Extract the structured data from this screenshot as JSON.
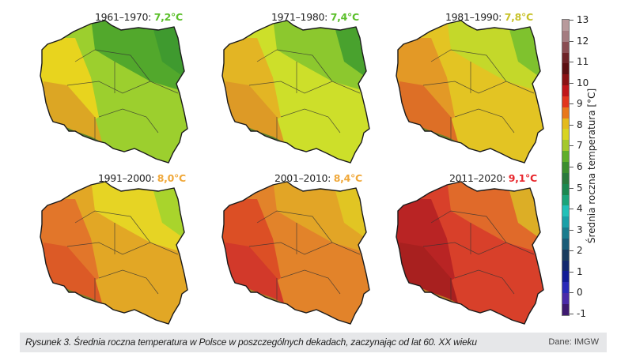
{
  "figure": {
    "caption": "Rysunek 3. Średnia roczna temperatura w Polsce w poszczególnych dekadach, zaczynając od lat 60. XX wieku",
    "source": "Dane: IMGW"
  },
  "panels": [
    {
      "period": "1961–1970: ",
      "mean": "7,2°C",
      "mean_color": "#5bbf2a",
      "fill_main": "#9ccf2e",
      "fill_north": "#52a82c",
      "fill_ne": "#3f9a2f",
      "fill_west": "#e8d41e",
      "fill_sw": "#dca624"
    },
    {
      "period": "1971–1980: ",
      "mean": "7,4°C",
      "mean_color": "#5bbf2a",
      "fill_main": "#cddf2a",
      "fill_north": "#8cc82e",
      "fill_ne": "#49a22e",
      "fill_west": "#e3b524",
      "fill_sw": "#dd9a26"
    },
    {
      "period": "1981–1990: ",
      "mean": "7,8°C",
      "mean_color": "#c8c22a",
      "fill_main": "#e3c423",
      "fill_north": "#c4d82a",
      "fill_ne": "#7fc22e",
      "fill_west": "#e39926",
      "fill_sw": "#dd6f26"
    },
    {
      "period": "1991–2000: ",
      "mean": "8,0°C",
      "mean_color": "#f0a83a",
      "fill_main": "#e2a725",
      "fill_north": "#e6d424",
      "fill_ne": "#a9d42c",
      "fill_west": "#e2762a",
      "fill_sw": "#dc5a26"
    },
    {
      "period": "2001–2010: ",
      "mean": "8,4°C",
      "mean_color": "#f0a83a",
      "fill_main": "#e2832a",
      "fill_north": "#e2a526",
      "fill_ne": "#e1c523",
      "fill_west": "#dc4f25",
      "fill_sw": "#d2392a"
    },
    {
      "period": "2011–2020: ",
      "mean": "9,1°C",
      "mean_color": "#e8272d",
      "fill_main": "#d8402a",
      "fill_north": "#e06a2a",
      "fill_ne": "#dcae26",
      "fill_west": "#b92424",
      "fill_sw": "#a8201f"
    }
  ],
  "colorbar": {
    "title": "Średnia roczna temperatura [°C]",
    "ticks": [
      "13",
      "12",
      "11",
      "10",
      "9",
      "8",
      "7",
      "6",
      "5",
      "4",
      "3",
      "2",
      "1",
      "0",
      "-1"
    ],
    "colors": [
      "#b89a9c",
      "#a47c80",
      "#8a4d52",
      "#6e2428",
      "#5c1012",
      "#8a1214",
      "#c0161a",
      "#e2361e",
      "#e8781c",
      "#e4ba1c",
      "#d8d422",
      "#a4c82c",
      "#5fae2a",
      "#3c8e2e",
      "#2a7a3c",
      "#1c8850",
      "#1ca47a",
      "#22c0b8",
      "#1aa0a8",
      "#1a7c8e",
      "#1a5c78",
      "#1a3c5e",
      "#12286e",
      "#121c96",
      "#2a2ab8",
      "#4a2aa8",
      "#3e1a70"
    ]
  },
  "chart_data": {
    "type": "map-series",
    "title": "Średnia roczna temperatura w Polsce w poszczególnych dekadach",
    "categories": [
      "1961–1970",
      "1971–1980",
      "1981–1990",
      "1991–2000",
      "2001–2010",
      "2011–2020"
    ],
    "values": [
      7.2,
      7.4,
      7.8,
      8.0,
      8.4,
      9.1
    ],
    "unit": "°C",
    "colorbar_range": [
      -1,
      13
    ],
    "colorbar_label": "Średnia roczna temperatura [°C]",
    "source": "Dane: IMGW"
  }
}
